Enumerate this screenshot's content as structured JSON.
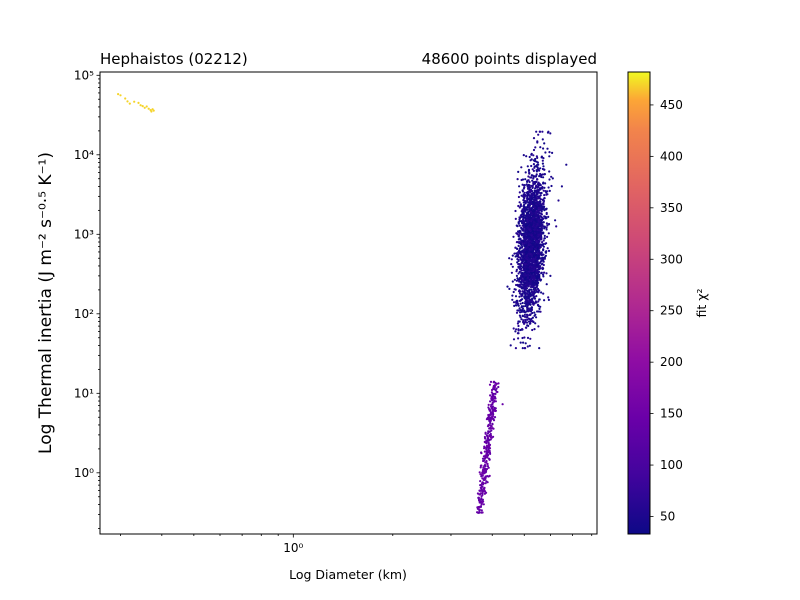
{
  "chart_data": {
    "type": "scatter",
    "title_left": "Hephaistos (02212)",
    "title_right": "48600 points displayed",
    "xlabel": "Log Diameter (km)",
    "ylabel": "Log Thermal inertia (J m⁻² s⁻⁰·⁵ K⁻¹)",
    "x_scale": "log",
    "y_scale": "log",
    "xlim": [
      0.26,
      8.3
    ],
    "ylim": [
      0.17,
      110000
    ],
    "x_ticks": [
      {
        "value": 1,
        "label": "10⁰"
      }
    ],
    "y_ticks": [
      {
        "value": 1,
        "label": "10⁰"
      },
      {
        "value": 10,
        "label": "10¹"
      },
      {
        "value": 100,
        "label": "10²"
      },
      {
        "value": 1000,
        "label": "10³"
      },
      {
        "value": 10000,
        "label": "10⁴"
      },
      {
        "value": 100000,
        "label": "10⁵"
      }
    ],
    "colorbar": {
      "label": "fit χ²",
      "colormap": "plasma",
      "min": 33,
      "max": 482,
      "ticks": [
        50,
        100,
        150,
        200,
        250,
        300,
        350,
        400,
        450
      ]
    },
    "clusters": [
      {
        "name": "high-chi2 small-diameter group",
        "chi2": 470,
        "points": [
          [
            0.295,
            58000
          ],
          [
            0.3,
            56000
          ],
          [
            0.31,
            51000
          ],
          [
            0.315,
            47000
          ],
          [
            0.32,
            44000
          ],
          [
            0.33,
            46500
          ],
          [
            0.34,
            45000
          ],
          [
            0.345,
            42000
          ],
          [
            0.35,
            41000
          ],
          [
            0.355,
            39000
          ],
          [
            0.36,
            40500
          ],
          [
            0.365,
            38000
          ],
          [
            0.37,
            36500
          ],
          [
            0.372,
            35000
          ],
          [
            0.375,
            37500
          ],
          [
            0.378,
            36000
          ]
        ]
      },
      {
        "name": "low-chi2 main group",
        "chi2": 45,
        "diameter_range": [
          4.4,
          6.8
        ],
        "thermal_inertia_range": [
          37,
          19500
        ],
        "points": [
          [
            4.55,
            40
          ],
          [
            4.7,
            60
          ],
          [
            4.8,
            80
          ],
          [
            4.9,
            110
          ],
          [
            5.0,
            180
          ],
          [
            5.1,
            400
          ],
          [
            4.6,
            150
          ],
          [
            4.75,
            300
          ],
          [
            5.2,
            900
          ],
          [
            5.3,
            2000
          ],
          [
            5.4,
            4500
          ],
          [
            5.5,
            8000
          ],
          [
            5.7,
            12000
          ],
          [
            5.9,
            19000
          ],
          [
            6.5,
            4000
          ],
          [
            6.7,
            7500
          ],
          [
            6.2,
            1500
          ],
          [
            5.8,
            600
          ],
          [
            6.0,
            300
          ],
          [
            4.45,
            220
          ],
          [
            4.5,
            500
          ],
          [
            5.05,
            6000
          ],
          [
            5.25,
            10000
          ]
        ]
      },
      {
        "name": "mid-chi2 low-inertia group",
        "chi2": 140,
        "diameter_range": [
          3.6,
          4.3
        ],
        "thermal_inertia_range": [
          0.31,
          14
        ],
        "points": [
          [
            3.6,
            0.32
          ],
          [
            3.65,
            0.45
          ],
          [
            3.7,
            0.7
          ],
          [
            3.75,
            1.0
          ],
          [
            3.8,
            1.5
          ],
          [
            3.85,
            2.5
          ],
          [
            3.9,
            4.0
          ],
          [
            3.95,
            6.0
          ],
          [
            4.0,
            9.0
          ],
          [
            4.05,
            14
          ],
          [
            3.7,
            1.8
          ],
          [
            3.82,
            3.2
          ],
          [
            4.3,
            7.3
          ],
          [
            3.62,
            0.55
          ],
          [
            3.9,
            0.9
          ]
        ]
      }
    ],
    "grid": false,
    "legend": "none"
  }
}
